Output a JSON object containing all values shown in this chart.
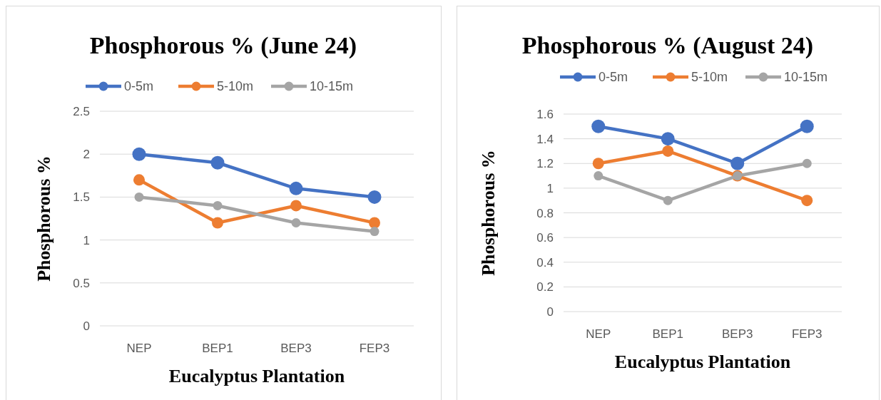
{
  "chart_data": [
    {
      "type": "line",
      "title": "Phosphorous % (June 24)",
      "xlabel": "Eucalyptus Plantation",
      "ylabel": "Phosphorous %",
      "categories": [
        "NEP",
        "BEP1",
        "BEP3",
        "FEP3"
      ],
      "ylim": [
        0,
        2.5
      ],
      "yticks": [
        0,
        0.5,
        1,
        1.5,
        2,
        2.5
      ],
      "grid": "y",
      "legend": "top",
      "marker": "circle",
      "series": [
        {
          "name": "0-5m",
          "color": "#4472c4",
          "values": [
            2,
            1.9,
            1.6,
            1.5
          ]
        },
        {
          "name": "5-10m",
          "color": "#ed7d31",
          "values": [
            1.7,
            1.2,
            1.4,
            1.2
          ]
        },
        {
          "name": "10-15m",
          "color": "#a5a5a5",
          "values": [
            1.5,
            1.4,
            1.2,
            1.1
          ]
        }
      ]
    },
    {
      "type": "line",
      "title": "Phosphorous % (August 24)",
      "xlabel": "Eucalyptus Plantation",
      "ylabel": "Phosphorous %",
      "categories": [
        "NEP",
        "BEP1",
        "BEP3",
        "FEP3"
      ],
      "ylim": [
        0,
        1.6
      ],
      "yticks": [
        0,
        0.2,
        0.4,
        0.6,
        0.8,
        1,
        1.2,
        1.4,
        1.6
      ],
      "grid": "y",
      "legend": "top",
      "marker": "circle",
      "series": [
        {
          "name": "0-5m",
          "color": "#4472c4",
          "values": [
            1.5,
            1.4,
            1.2,
            1.5
          ]
        },
        {
          "name": "5-10m",
          "color": "#ed7d31",
          "values": [
            1.2,
            1.3,
            1.1,
            0.9
          ]
        },
        {
          "name": "10-15m",
          "color": "#a5a5a5",
          "values": [
            1.1,
            0.9,
            1.1,
            1.2
          ]
        }
      ]
    }
  ]
}
